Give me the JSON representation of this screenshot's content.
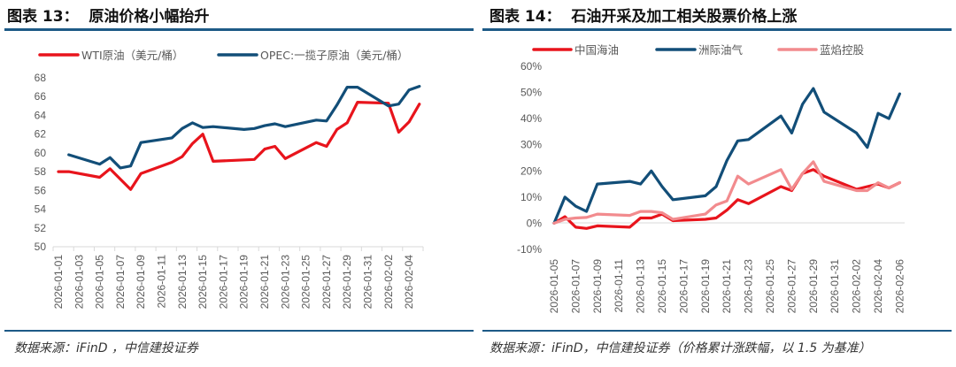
{
  "left": {
    "title": "图表 13：  原油价格小幅抬升",
    "source": "数据来源：iFinD ，中信建投证券"
  },
  "right": {
    "title": "图表 14：  石油开采及加工相关股票价格上涨",
    "source": "数据来源：iFinD，中信建投证券（价格累计涨跌幅，以 1.5 为基准）"
  },
  "chart_data": [
    {
      "type": "line",
      "title": "原油价格小幅抬升",
      "ylim": [
        50,
        68
      ],
      "yticks": [
        "50",
        "52",
        "54",
        "56",
        "58",
        "60",
        "62",
        "64",
        "66",
        "68"
      ],
      "xticks": [
        "2026-01-01",
        "2026-01-03",
        "2026-01-05",
        "2026-01-07",
        "2026-01-09",
        "2026-01-11",
        "2026-01-13",
        "2026-01-15",
        "2026-01-17",
        "2026-01-19",
        "2026-01-21",
        "2026-01-23",
        "2026-01-25",
        "2026-01-27",
        "2026-01-29",
        "2026-01-31",
        "2026-02-02",
        "2026-02-04"
      ],
      "legend": "top",
      "grid": false,
      "series": [
        {
          "name": "WTI原油（美元/桶）",
          "color": "#e8141c",
          "x": [
            "2026-01-01",
            "2026-01-02",
            "2026-01-05",
            "2026-01-06",
            "2026-01-08",
            "2026-01-09",
            "2026-01-12",
            "2026-01-13",
            "2026-01-14",
            "2026-01-15",
            "2026-01-16",
            "2026-01-20",
            "2026-01-21",
            "2026-01-22",
            "2026-01-23",
            "2026-01-26",
            "2026-01-27",
            "2026-01-28",
            "2026-01-29",
            "2026-01-30",
            "2026-02-02",
            "2026-02-03",
            "2026-02-04",
            "2026-02-05"
          ],
          "values": [
            58.0,
            58.0,
            57.4,
            58.3,
            56.1,
            57.8,
            59.0,
            59.6,
            61.0,
            62.0,
            59.1,
            59.3,
            60.4,
            60.7,
            59.4,
            61.1,
            60.7,
            62.5,
            63.2,
            65.4,
            65.3,
            62.2,
            63.3,
            65.2
          ]
        },
        {
          "name": "OPEC:一揽子原油（美元/桶）",
          "color": "#124e78",
          "x": [
            "2026-01-02",
            "2026-01-05",
            "2026-01-06",
            "2026-01-07",
            "2026-01-08",
            "2026-01-09",
            "2026-01-12",
            "2026-01-13",
            "2026-01-14",
            "2026-01-15",
            "2026-01-16",
            "2026-01-19",
            "2026-01-20",
            "2026-01-21",
            "2026-01-22",
            "2026-01-23",
            "2026-01-26",
            "2026-01-27",
            "2026-01-28",
            "2026-01-29",
            "2026-01-30",
            "2026-02-02",
            "2026-02-03",
            "2026-02-04",
            "2026-02-05"
          ],
          "values": [
            59.8,
            58.8,
            59.5,
            58.4,
            58.6,
            61.1,
            61.6,
            62.6,
            63.2,
            62.7,
            62.8,
            62.5,
            62.6,
            62.9,
            63.1,
            62.8,
            63.5,
            63.4,
            65.1,
            67.0,
            67.0,
            65.0,
            65.2,
            66.7,
            67.1
          ]
        }
      ]
    },
    {
      "type": "line",
      "title": "石油开采及加工相关股票价格上涨",
      "ylim": [
        -10,
        60
      ],
      "yticks": [
        "-10%",
        "0%",
        "10%",
        "20%",
        "30%",
        "40%",
        "50%",
        "60%"
      ],
      "xticks": [
        "2026-01-05",
        "2026-01-07",
        "2026-01-09",
        "2026-01-11",
        "2026-01-13",
        "2026-01-15",
        "2026-01-17",
        "2026-01-19",
        "2026-01-21",
        "2026-01-23",
        "2026-01-25",
        "2026-01-27",
        "2026-01-29",
        "2026-01-31",
        "2026-02-02",
        "2026-02-04",
        "2026-02-06"
      ],
      "legend": "top",
      "grid": false,
      "x": [
        "2026-01-05",
        "2026-01-06",
        "2026-01-07",
        "2026-01-08",
        "2026-01-09",
        "2026-01-12",
        "2026-01-13",
        "2026-01-14",
        "2026-01-15",
        "2026-01-16",
        "2026-01-19",
        "2026-01-20",
        "2026-01-21",
        "2026-01-22",
        "2026-01-23",
        "2026-01-26",
        "2026-01-27",
        "2026-01-28",
        "2026-01-29",
        "2026-01-30",
        "2026-02-02",
        "2026-02-03",
        "2026-02-04",
        "2026-02-05",
        "2026-02-06"
      ],
      "series": [
        {
          "name": "中国海油",
          "color": "#e8141c",
          "values": [
            0,
            2.5,
            -1.5,
            -2,
            -1,
            -1.5,
            2,
            2,
            3.5,
            1,
            1.5,
            2,
            5,
            9,
            7.5,
            14,
            12.5,
            19,
            20.5,
            18,
            13,
            14,
            15,
            13.5,
            15.5
          ]
        },
        {
          "name": "洲际油气",
          "color": "#124e78",
          "values": [
            0,
            10,
            6.5,
            4.5,
            15,
            16,
            15,
            20,
            14,
            9,
            10.5,
            14,
            24,
            31.5,
            32,
            41,
            34.5,
            45.5,
            51.5,
            42.5,
            34.5,
            29,
            42,
            40,
            49.5
          ]
        },
        {
          "name": "蓝焰控股",
          "color": "#f28b8e",
          "values": [
            0,
            1.5,
            2,
            2.2,
            3.5,
            3,
            4.5,
            4.5,
            4,
            1.5,
            3.5,
            7,
            8.5,
            18,
            15,
            20.5,
            13,
            19,
            23.5,
            16,
            12.5,
            12.5,
            15.5,
            13.5,
            15.5
          ]
        }
      ]
    }
  ]
}
